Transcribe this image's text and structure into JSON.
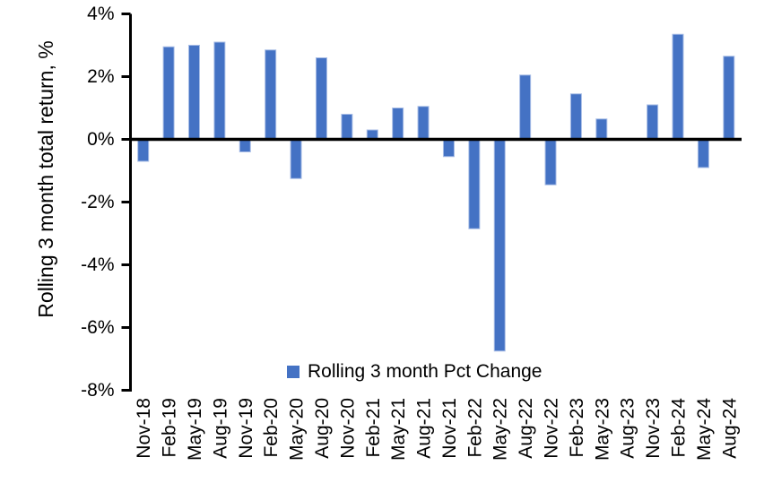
{
  "chart_data": {
    "type": "bar",
    "ylabel": "Rolling 3 month total return, %",
    "xlabel": "",
    "categories": [
      "Nov-18",
      "Feb-19",
      "May-19",
      "Aug-19",
      "Nov-19",
      "Feb-20",
      "May-20",
      "Aug-20",
      "Nov-20",
      "Feb-21",
      "May-21",
      "Aug-21",
      "Nov-21",
      "Feb-22",
      "May-22",
      "Aug-22",
      "Nov-22",
      "Feb-23",
      "May-23",
      "Aug-23",
      "Nov-23",
      "Feb-24",
      "May-24",
      "Aug-24"
    ],
    "series": [
      {
        "name": "Rolling 3 month Pct Change",
        "values": [
          -0.7,
          2.95,
          3.0,
          3.1,
          -0.4,
          2.85,
          -1.25,
          2.6,
          0.8,
          0.3,
          1.0,
          1.05,
          -0.55,
          -2.85,
          -6.75,
          2.05,
          -1.45,
          1.45,
          0.65,
          0.0,
          1.1,
          3.35,
          -0.9,
          2.65
        ]
      }
    ],
    "ylim": [
      -8,
      4
    ],
    "yticks": {
      "values": [
        4,
        2,
        0,
        -2,
        -4,
        -6,
        -8
      ],
      "labels": [
        "4%",
        "2%",
        "0%",
        "-2%",
        "-4%",
        "-6%",
        "-8%"
      ]
    },
    "grid": false,
    "legend": {
      "position": "bottom-center-inside",
      "entries": [
        "Rolling 3 month Pct Change"
      ]
    },
    "colors": {
      "bar": "#4472C4",
      "bar_edge": "#A8BDE6",
      "axis": "#000000",
      "text": "#000000",
      "background": "#FFFFFF"
    }
  }
}
